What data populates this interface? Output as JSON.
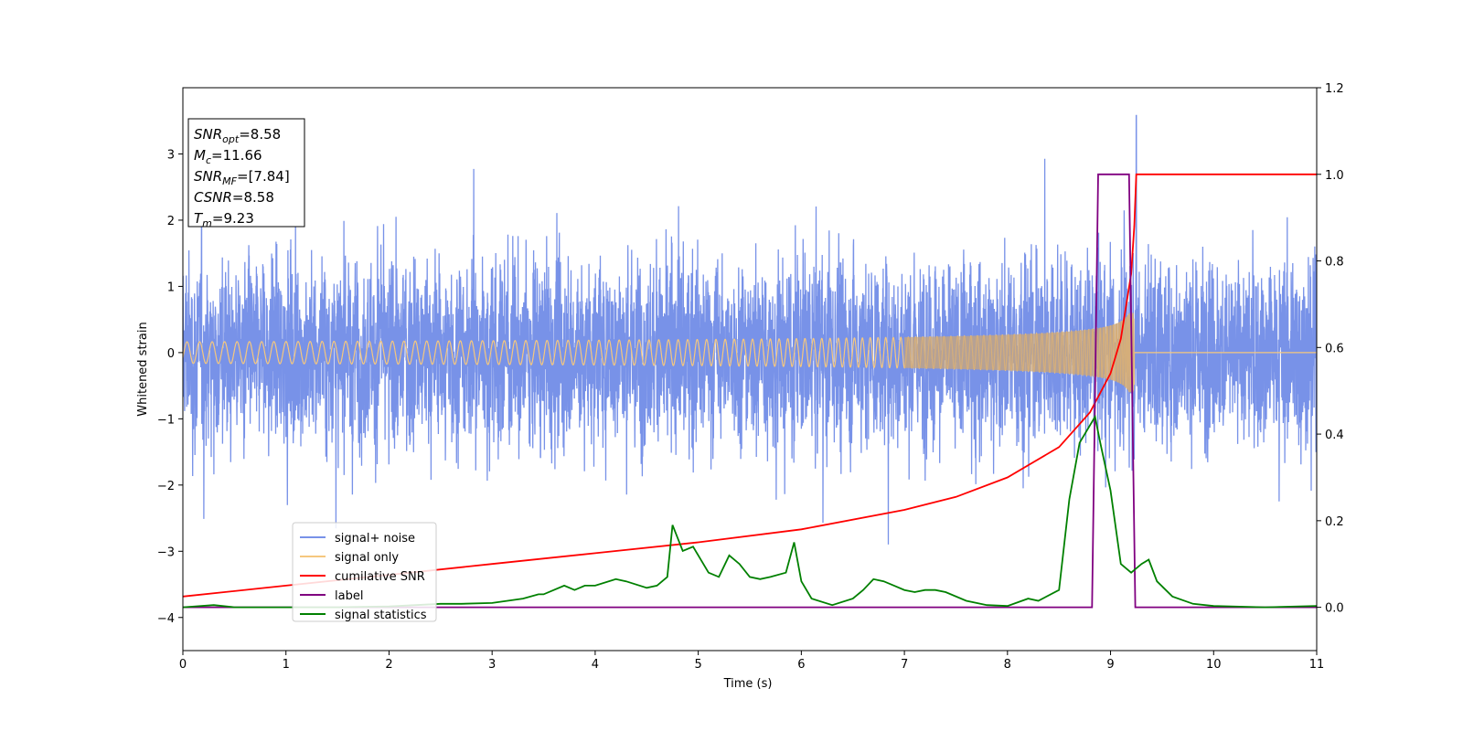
{
  "chart_data": {
    "type": "line",
    "xlabel": "Time (s)",
    "ylabel": "Whitened strain",
    "xlim": [
      0,
      11
    ],
    "ylim_left": [
      -4.5,
      4.0
    ],
    "ylim_right": [
      -0.1,
      1.2
    ],
    "xticks": [
      "0",
      "1",
      "2",
      "3",
      "4",
      "5",
      "6",
      "7",
      "8",
      "9",
      "10",
      "11"
    ],
    "yticks_left": [
      "−4",
      "−3",
      "−2",
      "−1",
      "0",
      "1",
      "2",
      "3"
    ],
    "yticks_right": [
      "0.0",
      "0.2",
      "0.4",
      "0.6",
      "0.8",
      "1.0",
      "1.2"
    ],
    "stats_box": [
      {
        "base": "SNR",
        "sub": "opt",
        "value": "=8.58"
      },
      {
        "base": "M",
        "sub": "c",
        "value": "=11.66"
      },
      {
        "base": "SNR",
        "sub": "MF",
        "value": "=[7.84]"
      },
      {
        "base": "CSNR",
        "sub": "",
        "value": "=8.58"
      },
      {
        "base": "T",
        "sub": "m",
        "value": "=9.23"
      }
    ],
    "legend_placement": "lower-left",
    "series": [
      {
        "name": "signal+ noise",
        "axis": "left",
        "color": "#7892e8",
        "description": "noisy whitened strain, roughly within -2.5..2.5 with peaks to about 3.6",
        "peak_value": 3.58,
        "peak_time": 9.25
      },
      {
        "name": "signal only",
        "axis": "left",
        "color": "#f5c77e",
        "description": "chirp growing in amplitude up to about 0.6 at 9.23 s, zero after",
        "merger_time": 9.23,
        "max_amplitude": 0.6
      },
      {
        "name": "cumilative SNR",
        "axis": "right",
        "color": "#ff0000",
        "x": [
          0,
          1,
          2,
          3,
          4,
          5,
          6,
          7,
          7.5,
          8,
          8.5,
          8.8,
          9.0,
          9.1,
          9.2,
          9.23,
          9.25,
          11
        ],
        "y": [
          0.025,
          0.05,
          0.075,
          0.1,
          0.125,
          0.15,
          0.18,
          0.225,
          0.255,
          0.3,
          0.37,
          0.45,
          0.54,
          0.62,
          0.77,
          0.88,
          1.0,
          1.0
        ]
      },
      {
        "name": "label",
        "axis": "right",
        "color": "#800080",
        "x": [
          0,
          8.82,
          8.88,
          9.18,
          9.24,
          11
        ],
        "y": [
          0,
          0,
          1,
          1,
          0,
          0
        ]
      },
      {
        "name": "signal statistics",
        "axis": "right",
        "color": "#008000",
        "x": [
          0,
          0.3,
          0.5,
          1.0,
          1.5,
          2.0,
          2.5,
          2.7,
          3.0,
          3.3,
          3.45,
          3.5,
          3.7,
          3.8,
          3.9,
          4.0,
          4.2,
          4.3,
          4.5,
          4.6,
          4.7,
          4.75,
          4.85,
          4.95,
          5.1,
          5.2,
          5.3,
          5.4,
          5.5,
          5.6,
          5.7,
          5.85,
          5.93,
          6.0,
          6.1,
          6.3,
          6.5,
          6.6,
          6.7,
          6.8,
          6.9,
          7.0,
          7.1,
          7.2,
          7.3,
          7.4,
          7.6,
          7.8,
          8.0,
          8.2,
          8.3,
          8.5,
          8.6,
          8.7,
          8.85,
          8.9,
          9.0,
          9.1,
          9.2,
          9.3,
          9.37,
          9.45,
          9.6,
          9.8,
          10.0,
          10.5,
          11.0
        ],
        "y": [
          0.0,
          0.005,
          0.0,
          0.0,
          0.0,
          0.002,
          0.008,
          0.008,
          0.01,
          0.02,
          0.03,
          0.03,
          0.05,
          0.04,
          0.05,
          0.05,
          0.065,
          0.06,
          0.045,
          0.05,
          0.07,
          0.19,
          0.13,
          0.14,
          0.08,
          0.07,
          0.12,
          0.1,
          0.07,
          0.065,
          0.07,
          0.08,
          0.15,
          0.06,
          0.02,
          0.005,
          0.02,
          0.04,
          0.065,
          0.06,
          0.05,
          0.04,
          0.035,
          0.04,
          0.04,
          0.035,
          0.015,
          0.005,
          0.003,
          0.02,
          0.015,
          0.04,
          0.25,
          0.38,
          0.44,
          0.38,
          0.27,
          0.1,
          0.08,
          0.1,
          0.11,
          0.06,
          0.025,
          0.008,
          0.003,
          0.0,
          0.003
        ]
      }
    ]
  }
}
